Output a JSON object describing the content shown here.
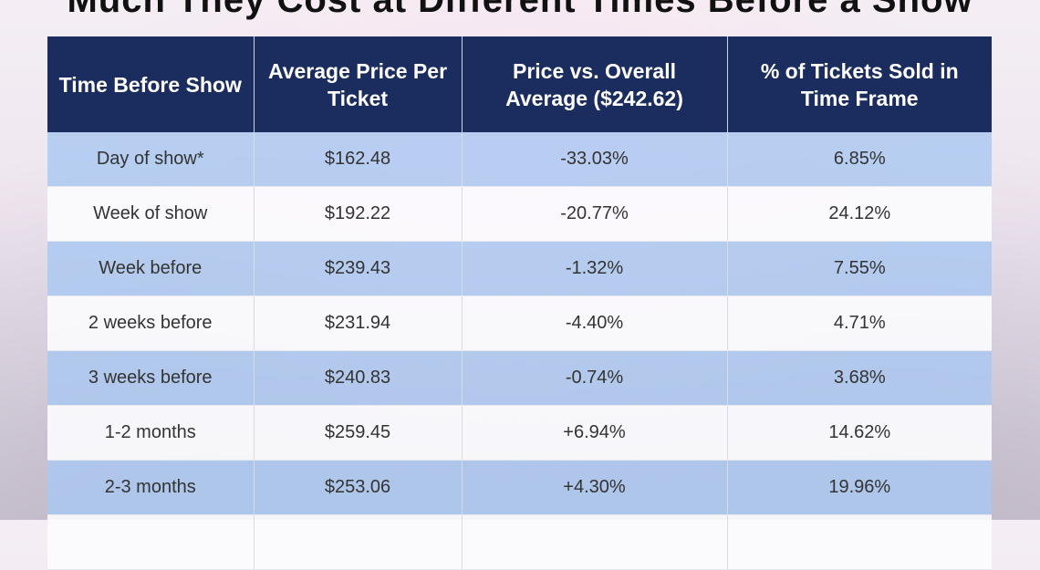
{
  "title": "Much They Cost at Different Times Before a Show",
  "chart_data": {
    "type": "table",
    "title": "Much They Cost at Different Times Before a Show",
    "columns": [
      "Time Before Show",
      "Average Price Per Ticket",
      "Price vs. Overall Average ($242.62)",
      "% of Tickets Sold in Time Frame"
    ],
    "rows": [
      [
        "Day of show*",
        "$162.48",
        "-33.03%",
        "6.85%"
      ],
      [
        "Week of show",
        "$192.22",
        "-20.77%",
        "24.12%"
      ],
      [
        "Week before",
        "$239.43",
        "-1.32%",
        "7.55%"
      ],
      [
        "2 weeks before",
        "$231.94",
        "-4.40%",
        "4.71%"
      ],
      [
        "3 weeks before",
        "$240.83",
        "-0.74%",
        "3.68%"
      ],
      [
        "1-2 months",
        "$259.45",
        "+6.94%",
        "14.62%"
      ],
      [
        "2-3 months",
        "$253.06",
        "+4.30%",
        "19.96%"
      ]
    ]
  },
  "colors": {
    "header": "#1b2d5f",
    "row_blue": "#aac8f0",
    "row_white": "#fcfcfe"
  }
}
